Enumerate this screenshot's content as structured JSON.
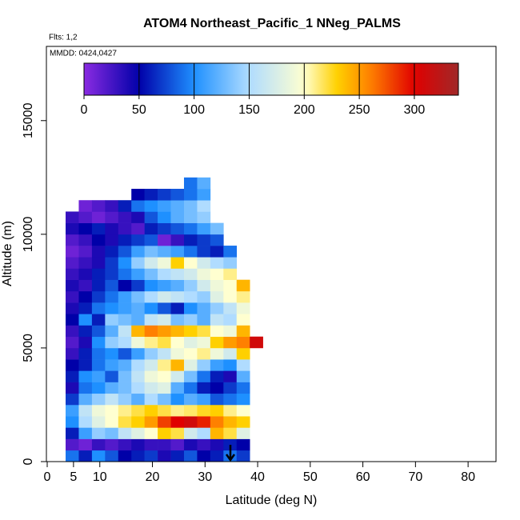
{
  "chart_data": {
    "type": "heatmap",
    "title": "ATOM4 Northeast_Pacific_1 NNeg_PALMS",
    "subtitle": "Flts: 1,2",
    "annotation": "MMDD: 0424,0427",
    "x_label": "Latitude (deg N)",
    "y_label": "Altitude (m)",
    "xlim": [
      0,
      85
    ],
    "ylim": [
      0,
      18300
    ],
    "xticks": [
      0,
      5,
      10,
      20,
      30,
      40,
      50,
      60,
      70,
      80
    ],
    "yticks": [
      0,
      5000,
      10000,
      15000
    ],
    "xbins": [
      3.5,
      6,
      8.5,
      11,
      13.5,
      16,
      18.5,
      21,
      23.5,
      26,
      28.5,
      31,
      33.5,
      36,
      38.5,
      41
    ],
    "ybins": [
      0,
      500,
      1000,
      1500,
      2000,
      2500,
      3000,
      3500,
      4000,
      4500,
      5000,
      5500,
      6000,
      6500,
      7000,
      7500,
      8000,
      8500,
      9000,
      9500,
      10000,
      10500,
      11000,
      11500,
      12000,
      12500
    ],
    "values": [
      [
        90,
        60,
        100,
        80,
        50,
        60,
        70,
        40,
        60,
        80,
        50,
        60,
        90,
        70,
        null
      ],
      [
        20,
        10,
        30,
        20,
        30,
        40,
        30,
        30,
        20,
        40,
        30,
        40,
        60,
        50,
        null
      ],
      [
        60,
        110,
        140,
        130,
        160,
        180,
        200,
        230,
        220,
        170,
        150,
        240,
        220,
        180,
        null
      ],
      [
        100,
        150,
        180,
        200,
        220,
        230,
        250,
        280,
        300,
        310,
        290,
        260,
        240,
        230,
        null
      ],
      [
        110,
        160,
        190,
        200,
        210,
        220,
        230,
        220,
        210,
        215,
        225,
        230,
        210,
        200,
        null
      ],
      [
        70,
        120,
        140,
        160,
        140,
        120,
        150,
        130,
        100,
        120,
        110,
        80,
        90,
        100,
        null
      ],
      [
        40,
        90,
        100,
        120,
        130,
        150,
        170,
        180,
        120,
        90,
        60,
        50,
        70,
        90,
        null
      ],
      [
        60,
        100,
        110,
        80,
        130,
        160,
        190,
        200,
        170,
        130,
        90,
        60,
        40,
        120,
        null
      ],
      [
        50,
        60,
        90,
        110,
        120,
        150,
        170,
        210,
        240,
        180,
        140,
        110,
        100,
        150,
        null
      ],
      [
        30,
        60,
        90,
        100,
        80,
        110,
        140,
        160,
        190,
        200,
        210,
        190,
        170,
        230,
        null
      ],
      [
        20,
        40,
        100,
        140,
        150,
        190,
        210,
        220,
        200,
        180,
        190,
        230,
        250,
        260,
        310
      ],
      [
        30,
        60,
        80,
        120,
        160,
        240,
        260,
        250,
        240,
        230,
        220,
        200,
        190,
        240,
        null
      ],
      [
        50,
        100,
        60,
        140,
        130,
        120,
        160,
        170,
        130,
        140,
        120,
        160,
        150,
        200,
        null
      ],
      [
        40,
        60,
        90,
        100,
        110,
        120,
        100,
        80,
        60,
        100,
        120,
        140,
        160,
        190,
        null
      ],
      [
        30,
        50,
        70,
        90,
        110,
        130,
        150,
        170,
        160,
        150,
        140,
        180,
        200,
        210,
        null
      ],
      [
        40,
        30,
        60,
        80,
        50,
        70,
        100,
        110,
        120,
        140,
        170,
        190,
        200,
        240,
        null
      ],
      [
        30,
        40,
        60,
        70,
        90,
        110,
        130,
        150,
        160,
        170,
        190,
        200,
        210,
        null,
        null
      ],
      [
        20,
        30,
        40,
        70,
        100,
        140,
        170,
        190,
        230,
        200,
        170,
        150,
        140,
        null,
        null
      ],
      [
        10,
        20,
        40,
        60,
        80,
        110,
        130,
        120,
        110,
        90,
        70,
        60,
        90,
        null,
        null
      ],
      [
        20,
        30,
        50,
        40,
        60,
        70,
        80,
        10,
        30,
        60,
        70,
        80,
        null,
        null,
        null
      ],
      [
        40,
        50,
        60,
        40,
        30,
        20,
        60,
        70,
        80,
        90,
        110,
        130,
        null,
        null,
        null
      ],
      [
        30,
        20,
        10,
        20,
        30,
        40,
        80,
        100,
        120,
        130,
        140,
        null,
        null,
        null,
        null
      ],
      [
        null,
        10,
        20,
        30,
        60,
        90,
        100,
        110,
        120,
        130,
        150,
        null,
        null,
        null,
        null
      ],
      [
        null,
        null,
        null,
        null,
        null,
        50,
        60,
        70,
        80,
        90,
        110,
        null,
        null,
        null,
        null
      ],
      [
        null,
        null,
        null,
        null,
        null,
        null,
        null,
        null,
        null,
        90,
        120,
        null,
        null,
        null,
        null
      ]
    ],
    "clim": [
      0,
      340
    ],
    "cticks": [
      0,
      50,
      100,
      150,
      200,
      250,
      300
    ],
    "colorscale": [
      [
        0,
        "#8a2be2"
      ],
      [
        50,
        "#0000a8"
      ],
      [
        100,
        "#1e90ff"
      ],
      [
        150,
        "#b0dcff"
      ],
      [
        200,
        "#ffffd0"
      ],
      [
        230,
        "#ffd000"
      ],
      [
        260,
        "#ff8000"
      ],
      [
        300,
        "#e00000"
      ],
      [
        340,
        "#a02828"
      ]
    ]
  }
}
